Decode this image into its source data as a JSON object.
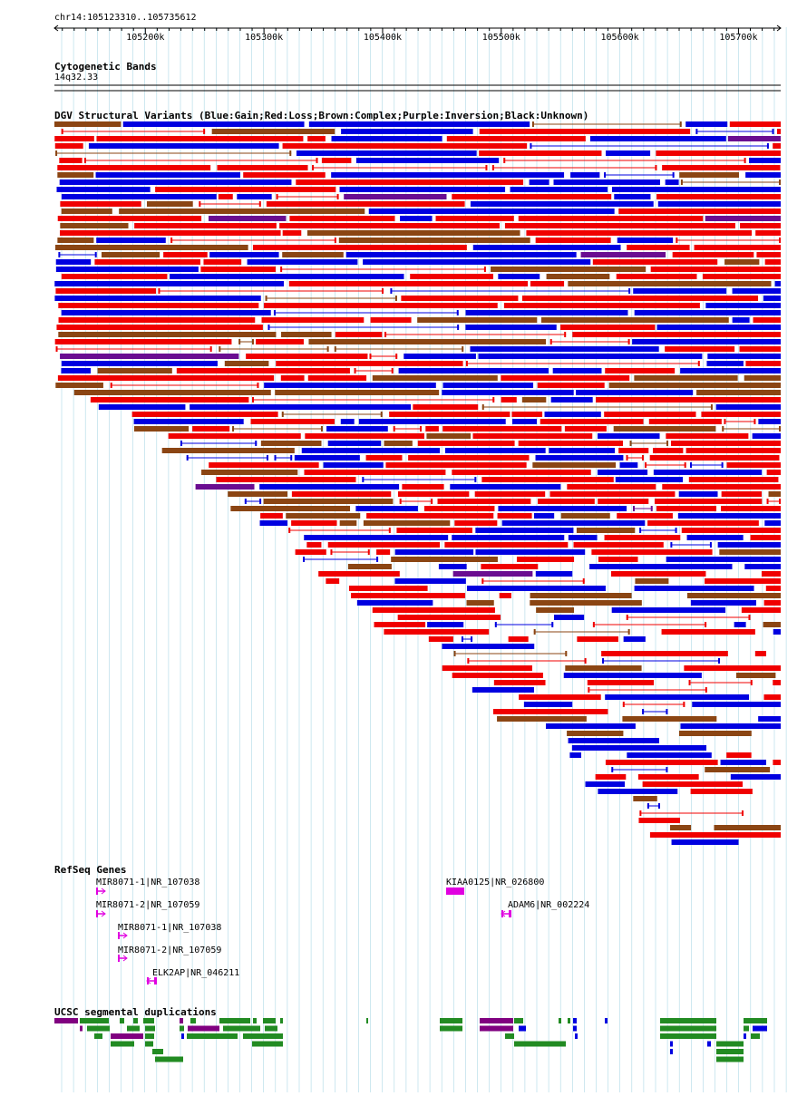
{
  "region": {
    "label": "chr14:105123310..105735612",
    "start": 105123310,
    "end": 105735612,
    "ticks": [
      105200000,
      105300000,
      105400000,
      105500000,
      105600000,
      105700000
    ],
    "tick_labels": [
      "105200k",
      "105300k",
      "105400k",
      "105500k",
      "105600k",
      "105700k"
    ]
  },
  "tracks": {
    "cytoband": {
      "title": "Cytogenetic Bands",
      "band": "14q32.33"
    },
    "dgv": {
      "title": "DGV Structural Variants (Blue:Gain;Red:Loss;Brown:Complex;Purple:Inversion;Black:Unknown)"
    },
    "refseq": {
      "title": "RefSeq Genes",
      "genes": [
        {
          "label": "MIR8071-1|NR_107038",
          "start": 105150000,
          "end": 105150200,
          "strand": "+"
        },
        {
          "label": "MIR8071-2|NR_107059",
          "start": 105150000,
          "end": 105150200,
          "strand": "+"
        },
        {
          "label": "MIR8071-1|NR_107038",
          "start": 105168000,
          "end": 105168200,
          "strand": "+"
        },
        {
          "label": "MIR8071-2|NR_107059",
          "start": 105168000,
          "end": 105168200,
          "strand": "+"
        },
        {
          "label": "ELK2AP|NR_046211",
          "start": 105198000,
          "end": 105208000,
          "strand": "-"
        },
        {
          "label": "KIAA0125|NR_026800",
          "start": 105450000,
          "end": 105465000,
          "strand": "+"
        },
        {
          "label": "ADAM6|NR_002224",
          "start": 105500000,
          "end": 105507000,
          "strand": "-"
        }
      ]
    },
    "segdup": {
      "title": "UCSC segmental duplications"
    }
  },
  "colors": {
    "gain": "#0000e0",
    "loss": "#f00000",
    "complex": "#8b4513",
    "inversion": "#6a0d91",
    "unknown": "#000000",
    "gene": "#e000e0",
    "segdup_green": "#228b22",
    "segdup_purple": "#800080",
    "segdup_blue": "#0000e0",
    "grid": "#add8e6"
  }
}
